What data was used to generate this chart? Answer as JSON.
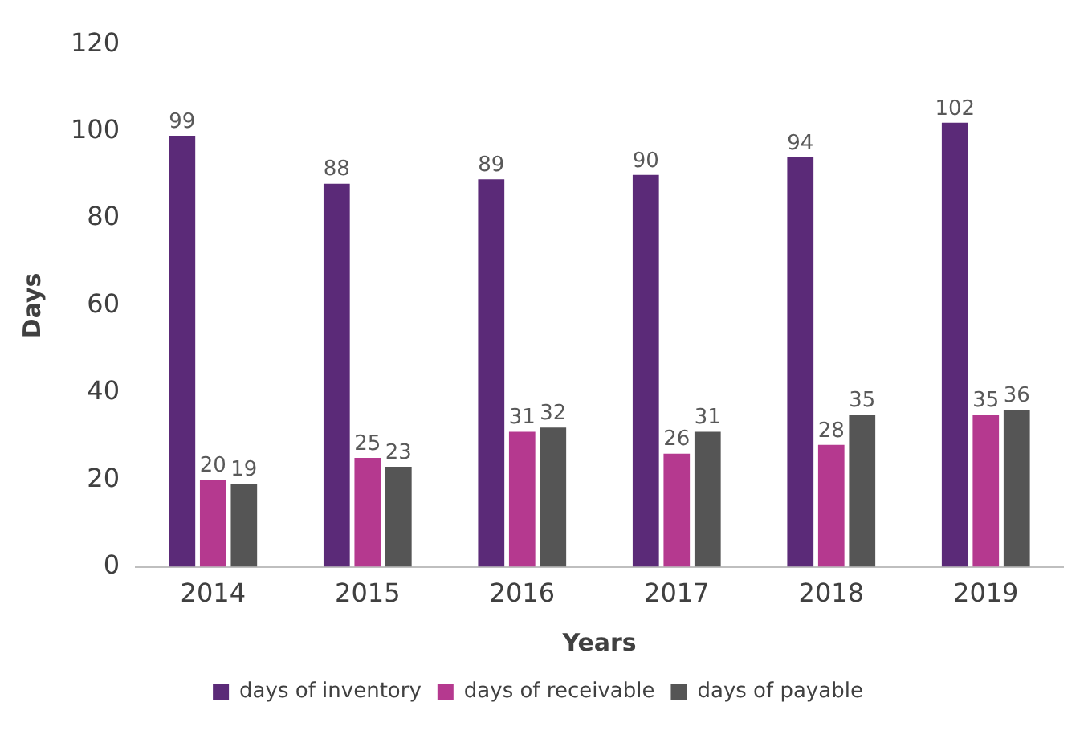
{
  "chart_data": {
    "type": "bar",
    "xlabel": "Years",
    "ylabel": "Days",
    "categories": [
      "2014",
      "2015",
      "2016",
      "2017",
      "2018",
      "2019"
    ],
    "series": [
      {
        "name": "days of inventory",
        "color": "#5b2a78",
        "values": [
          99,
          88,
          89,
          90,
          94,
          102
        ]
      },
      {
        "name": "days of receivable",
        "color": "#b5398f",
        "values": [
          20,
          25,
          31,
          26,
          28,
          35
        ]
      },
      {
        "name": "days of payable",
        "color": "#555555",
        "values": [
          19,
          23,
          32,
          31,
          35,
          36
        ]
      }
    ],
    "ylim": [
      0,
      120
    ],
    "yticks": [
      0,
      20,
      40,
      60,
      80,
      100,
      120
    ],
    "grid": false,
    "legend": "bottom",
    "data_labels": true
  }
}
